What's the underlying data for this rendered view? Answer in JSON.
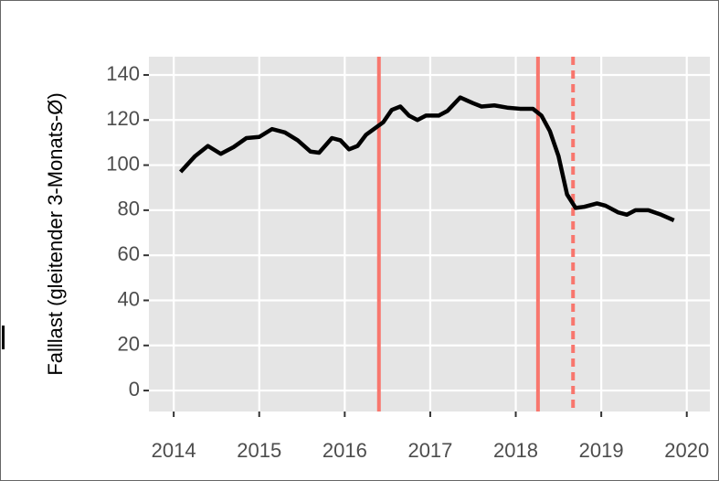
{
  "chart_data": {
    "type": "line",
    "y_label": "Falllast (gleitender 3-Monats-Ø)",
    "x": [
      2014.08,
      2014.25,
      2014.4,
      2014.55,
      2014.7,
      2014.85,
      2015.0,
      2015.15,
      2015.3,
      2015.45,
      2015.6,
      2015.7,
      2015.85,
      2015.95,
      2016.05,
      2016.15,
      2016.25,
      2016.45,
      2016.55,
      2016.65,
      2016.75,
      2016.85,
      2016.95,
      2017.1,
      2017.2,
      2017.35,
      2017.5,
      2017.6,
      2017.75,
      2017.9,
      2018.05,
      2018.2,
      2018.3,
      2018.4,
      2018.5,
      2018.6,
      2018.7,
      2018.8,
      2018.95,
      2019.05,
      2019.2,
      2019.3,
      2019.4,
      2019.55,
      2019.7,
      2019.85
    ],
    "series": [
      {
        "color": "#000000",
        "values": [
          97,
          104,
          108.5,
          105,
          108,
          112,
          112.5,
          116,
          114.5,
          111,
          106,
          105.5,
          112,
          111,
          107,
          108.5,
          113.5,
          119,
          124.5,
          126,
          122,
          120,
          122,
          122,
          124,
          130,
          127.5,
          126,
          126.5,
          125.5,
          125,
          125,
          122,
          115,
          104,
          87,
          81,
          81.5,
          83,
          82,
          79,
          78,
          80,
          80,
          78,
          75.5
        ]
      }
    ],
    "vlines": [
      {
        "x": 2016.4,
        "style": "solid",
        "color": "#f8766d"
      },
      {
        "x": 2018.26,
        "style": "solid",
        "color": "#f8766d"
      },
      {
        "x": 2018.67,
        "style": "dashed",
        "color": "#f8766d"
      }
    ],
    "xlim": [
      2013.71,
      2020.27
    ],
    "xticks": [
      2014,
      2015,
      2016,
      2017,
      2018,
      2019,
      2020
    ],
    "ylim": [
      -9.3,
      148.1
    ],
    "yticks": [
      0,
      20,
      40,
      60,
      80,
      100,
      120,
      140
    ],
    "grid": true
  }
}
